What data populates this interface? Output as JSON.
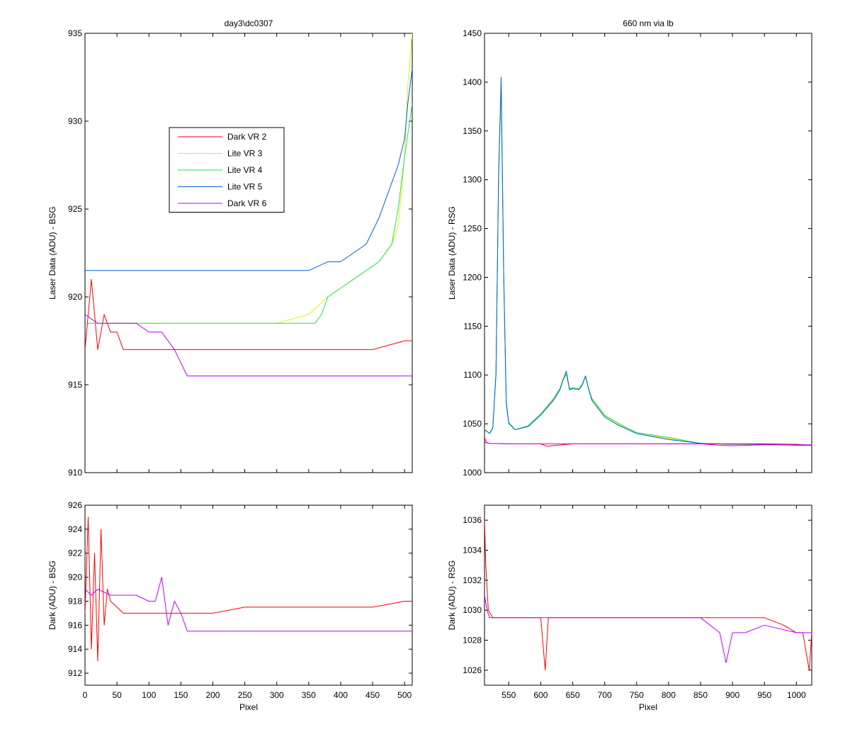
{
  "figure": {
    "background": "#ffffff",
    "series_colors": {
      "Dark VR 2": "#ff0000",
      "Lite VR 3": "#e0f000",
      "Lite VR 4": "#20e060",
      "Lite VR 5": "#0060e0",
      "Dark VR 6": "#c000ff"
    }
  },
  "chart_data": [
    {
      "type": "line",
      "title": "day3\\dc0307",
      "xlabel": "",
      "ylabel": "Laser Data (ADU) - BSG",
      "xlim": [
        0,
        512
      ],
      "ylim": [
        910,
        935
      ],
      "xticks": [
        0,
        50,
        100,
        150,
        200,
        250,
        300,
        350,
        400,
        450,
        500
      ],
      "yticks": [
        910,
        915,
        920,
        925,
        930,
        935
      ],
      "x_tick_labels_visible": false,
      "legend": {
        "placement": "upper-left-center",
        "entries": [
          "Dark VR 2",
          "Lite VR 3",
          "Lite VR 4",
          "Lite VR 5",
          "Dark VR 6"
        ]
      },
      "series": [
        {
          "name": "Dark VR 2",
          "x": [
            0,
            10,
            20,
            30,
            40,
            50,
            60,
            80,
            100,
            150,
            200,
            250,
            300,
            350,
            400,
            450,
            500,
            512
          ],
          "values": [
            917,
            921,
            917,
            919,
            918,
            918,
            917,
            917,
            917,
            917,
            917,
            917,
            917,
            917,
            917,
            917,
            917.5,
            917.5
          ]
        },
        {
          "name": "Lite VR 3",
          "x": [
            0,
            50,
            100,
            150,
            200,
            250,
            300,
            350,
            380,
            400,
            420,
            440,
            460,
            480,
            490,
            495,
            500,
            505,
            512
          ],
          "values": [
            918.5,
            918.5,
            918.5,
            918.5,
            918.5,
            918.5,
            918.5,
            919,
            920,
            920.5,
            921,
            921.5,
            922,
            923,
            924,
            926,
            928,
            932,
            935
          ]
        },
        {
          "name": "Lite VR 4",
          "x": [
            0,
            50,
            100,
            150,
            200,
            250,
            300,
            350,
            360,
            370,
            380,
            400,
            420,
            440,
            460,
            480,
            490,
            500,
            512
          ],
          "values": [
            918.5,
            918.5,
            918.5,
            918.5,
            918.5,
            918.5,
            918.5,
            918.5,
            918.5,
            919,
            920,
            920.5,
            921,
            921.5,
            922,
            923,
            925,
            928,
            931
          ]
        },
        {
          "name": "Lite VR 5",
          "x": [
            0,
            50,
            100,
            150,
            200,
            250,
            300,
            350,
            380,
            400,
            420,
            440,
            460,
            470,
            480,
            490,
            500,
            505,
            512
          ],
          "values": [
            921.5,
            921.5,
            921.5,
            921.5,
            921.5,
            921.5,
            921.5,
            921.5,
            922,
            922,
            922.5,
            923,
            924.5,
            925.5,
            926.5,
            927.5,
            929,
            931,
            933
          ]
        },
        {
          "name": "Dark VR 6",
          "x": [
            0,
            20,
            40,
            60,
            80,
            100,
            120,
            140,
            160,
            200,
            250,
            300,
            350,
            400,
            450,
            500,
            512
          ],
          "values": [
            919,
            918.5,
            918.5,
            918.5,
            918.5,
            918,
            918,
            917,
            915.5,
            915.5,
            915.5,
            915.5,
            915.5,
            915.5,
            915.5,
            915.5,
            915.5
          ]
        }
      ]
    },
    {
      "type": "line",
      "title": "660 nm via lb",
      "xlabel": "",
      "ylabel": "Laser Data (ADU) - RSG",
      "xlim": [
        512,
        1024
      ],
      "ylim": [
        1000,
        1450
      ],
      "xticks": [
        550,
        600,
        650,
        700,
        750,
        800,
        850,
        900,
        950,
        1000
      ],
      "yticks": [
        1000,
        1050,
        1100,
        1150,
        1200,
        1250,
        1300,
        1350,
        1400,
        1450
      ],
      "x_tick_labels_visible": false,
      "series": [
        {
          "name": "Lite VR 3",
          "x": [
            512,
            520,
            525,
            530,
            534,
            538,
            542,
            546,
            550,
            560,
            580,
            600,
            620,
            630,
            635,
            640,
            645,
            650,
            660,
            665,
            670,
            675,
            680,
            700,
            720,
            750,
            800,
            850,
            900,
            950,
            1000,
            1024
          ],
          "values": [
            1045,
            1040,
            1045,
            1100,
            1300,
            1395,
            1200,
            1070,
            1050,
            1044,
            1048,
            1060,
            1075,
            1085,
            1095,
            1100,
            1085,
            1086,
            1085,
            1090,
            1098,
            1085,
            1075,
            1058,
            1050,
            1040,
            1035,
            1030,
            1029,
            1029,
            1028,
            1028
          ]
        },
        {
          "name": "Lite VR 4",
          "x": [
            512,
            520,
            525,
            530,
            534,
            538,
            542,
            546,
            550,
            560,
            580,
            600,
            620,
            630,
            635,
            640,
            645,
            650,
            660,
            665,
            670,
            675,
            680,
            700,
            720,
            750,
            800,
            850,
            900,
            950,
            1000,
            1024
          ],
          "values": [
            1044,
            1040,
            1045,
            1100,
            1300,
            1397,
            1200,
            1070,
            1050,
            1044,
            1048,
            1060,
            1076,
            1086,
            1096,
            1101,
            1086,
            1087,
            1086,
            1091,
            1099,
            1086,
            1076,
            1059,
            1051,
            1041,
            1036,
            1030,
            1029,
            1029,
            1028,
            1028
          ]
        },
        {
          "name": "Lite VR 5",
          "x": [
            512,
            520,
            525,
            530,
            534,
            538,
            542,
            546,
            550,
            560,
            580,
            600,
            620,
            630,
            635,
            640,
            645,
            650,
            660,
            665,
            670,
            675,
            680,
            700,
            720,
            750,
            800,
            850,
            900,
            950,
            1000,
            1024
          ],
          "values": [
            1044,
            1040,
            1046,
            1102,
            1305,
            1405,
            1205,
            1072,
            1051,
            1044,
            1047,
            1059,
            1074,
            1085,
            1095,
            1104,
            1085,
            1086,
            1085,
            1090,
            1099,
            1085,
            1074,
            1057,
            1049,
            1040,
            1034,
            1030,
            1029,
            1029,
            1028,
            1028
          ]
        },
        {
          "name": "Dark VR 2",
          "x": [
            512,
            515,
            520,
            550,
            600,
            610,
            650,
            700,
            750,
            800,
            850,
            900,
            950,
            1000,
            1024
          ],
          "values": [
            1036,
            1031,
            1030,
            1029.5,
            1029.5,
            1027,
            1029.5,
            1029.5,
            1029.5,
            1029.5,
            1029.5,
            1029.5,
            1029.5,
            1029,
            1028
          ]
        },
        {
          "name": "Dark VR 6",
          "x": [
            512,
            520,
            550,
            600,
            650,
            700,
            750,
            800,
            850,
            880,
            900,
            950,
            1000,
            1024
          ],
          "values": [
            1031,
            1030,
            1029.5,
            1029.5,
            1029.5,
            1029.5,
            1029.5,
            1029.5,
            1029.5,
            1028,
            1027.5,
            1028.5,
            1028.5,
            1028.5
          ]
        }
      ]
    },
    {
      "type": "line",
      "title": "",
      "xlabel": "Pixel",
      "ylabel": "Dark (ADU) - BSG",
      "xlim": [
        0,
        512
      ],
      "ylim": [
        911,
        926
      ],
      "xticks": [
        0,
        50,
        100,
        150,
        200,
        250,
        300,
        350,
        400,
        450,
        500
      ],
      "yticks": [
        912,
        914,
        916,
        918,
        920,
        922,
        924,
        926
      ],
      "x_tick_labels_visible": true,
      "series": [
        {
          "name": "Dark VR 2",
          "x": [
            0,
            5,
            10,
            15,
            20,
            25,
            30,
            35,
            40,
            50,
            60,
            80,
            100,
            150,
            200,
            250,
            300,
            350,
            400,
            450,
            500,
            512
          ],
          "values": [
            917,
            925,
            914,
            922,
            913,
            924,
            916,
            919,
            918,
            917.5,
            917,
            917,
            917,
            917,
            917,
            917.5,
            917.5,
            917.5,
            917.5,
            917.5,
            918,
            918
          ]
        },
        {
          "name": "Dark VR 6",
          "x": [
            0,
            10,
            20,
            40,
            60,
            80,
            100,
            110,
            120,
            130,
            140,
            150,
            160,
            200,
            250,
            300,
            350,
            400,
            450,
            500,
            512
          ],
          "values": [
            919,
            918.5,
            919,
            918.5,
            918.5,
            918.5,
            918,
            918,
            920,
            916,
            918,
            917,
            915.5,
            915.5,
            915.5,
            915.5,
            915.5,
            915.5,
            915.5,
            915.5,
            915.5
          ]
        }
      ]
    },
    {
      "type": "line",
      "title": "",
      "xlabel": "Pixel",
      "ylabel": "Dark (ADU) - RSG",
      "xlim": [
        512,
        1024
      ],
      "ylim": [
        1025,
        1037
      ],
      "xticks": [
        550,
        600,
        650,
        700,
        750,
        800,
        850,
        900,
        950,
        1000
      ],
      "yticks": [
        1026,
        1028,
        1030,
        1032,
        1034,
        1036
      ],
      "x_tick_labels_visible": true,
      "series": [
        {
          "name": "Dark VR 2",
          "x": [
            512,
            514,
            518,
            525,
            550,
            600,
            607,
            612,
            650,
            700,
            750,
            800,
            850,
            900,
            950,
            980,
            1000,
            1010,
            1020,
            1024
          ],
          "values": [
            1036,
            1033,
            1030,
            1029.5,
            1029.5,
            1029.5,
            1026,
            1029.5,
            1029.5,
            1029.5,
            1029.5,
            1029.5,
            1029.5,
            1029.5,
            1029.5,
            1029,
            1028.5,
            1028.5,
            1026,
            1028.5
          ]
        },
        {
          "name": "Dark VR 6",
          "x": [
            512,
            516,
            520,
            550,
            600,
            650,
            700,
            750,
            800,
            850,
            880,
            890,
            900,
            920,
            950,
            1000,
            1024
          ],
          "values": [
            1031,
            1030,
            1029.5,
            1029.5,
            1029.5,
            1029.5,
            1029.5,
            1029.5,
            1029.5,
            1029.5,
            1028.5,
            1026.5,
            1028.5,
            1028.5,
            1029,
            1028.5,
            1028.5
          ]
        }
      ]
    }
  ]
}
